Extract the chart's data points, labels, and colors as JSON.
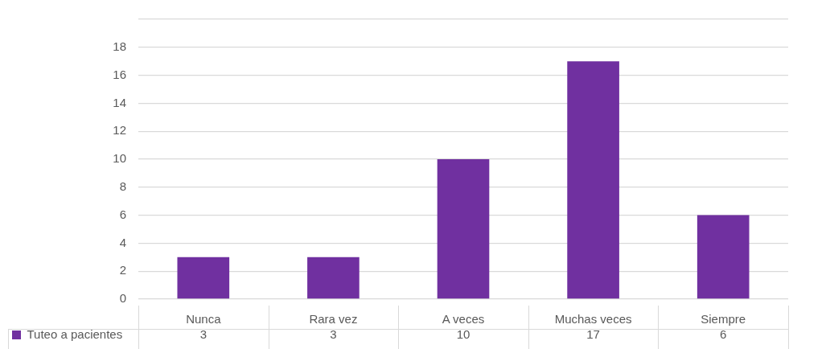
{
  "chart_data": {
    "type": "bar",
    "categories": [
      "Nunca",
      "Rara vez",
      "A veces",
      "Muchas veces",
      "Siempre"
    ],
    "series": [
      {
        "name": "Tuteo a pacientes",
        "color": "#7030a0",
        "values": [
          3,
          3,
          10,
          17,
          6
        ]
      }
    ],
    "ylim": [
      0,
      20
    ],
    "yticks": [
      0,
      2,
      4,
      6,
      8,
      10,
      12,
      14,
      16,
      18,
      {
        "value": 20,
        "label": null
      }
    ],
    "grid": "y",
    "legend": "bottom left",
    "data_labels": true
  }
}
